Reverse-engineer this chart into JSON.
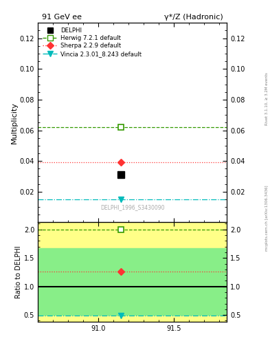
{
  "title_left": "91 GeV ee",
  "title_right": "γ*/Z (Hadronic)",
  "ylabel_main": "Multiplicity",
  "ylabel_ratio": "Ratio to DELPHI",
  "watermark": "DELPHI_1996_S3430090",
  "right_label_top": "Rivet 3.1.10, ≥ 3.2M events",
  "right_label_bottom": "mcplots.cern.ch [arXiv:1306.3436]",
  "xlim": [
    90.6,
    91.85
  ],
  "xticks": [
    91.0,
    91.5
  ],
  "ylim_main": [
    0.0,
    0.13
  ],
  "yticks_main": [
    0.02,
    0.04,
    0.06,
    0.08,
    0.1,
    0.12
  ],
  "ylim_ratio": [
    0.375,
    2.125
  ],
  "yticks_ratio": [
    0.5,
    1.0,
    1.5,
    2.0
  ],
  "data_x": 91.15,
  "data_y": 0.031,
  "data_color": "#000000",
  "herwig_y": 0.062,
  "herwig_color": "#339900",
  "herwig_ratio": 2.0,
  "sherpa_y": 0.039,
  "sherpa_color": "#ff3333",
  "sherpa_ratio": 1.26,
  "vincia_y": 0.015,
  "vincia_color": "#00bbbb",
  "vincia_ratio": 0.485,
  "band_green_inner": [
    0.5,
    1.67
  ],
  "band_yellow_outer": [
    0.375,
    2.125
  ],
  "band_green_color": "#88ee88",
  "band_yellow_color": "#ffff88"
}
